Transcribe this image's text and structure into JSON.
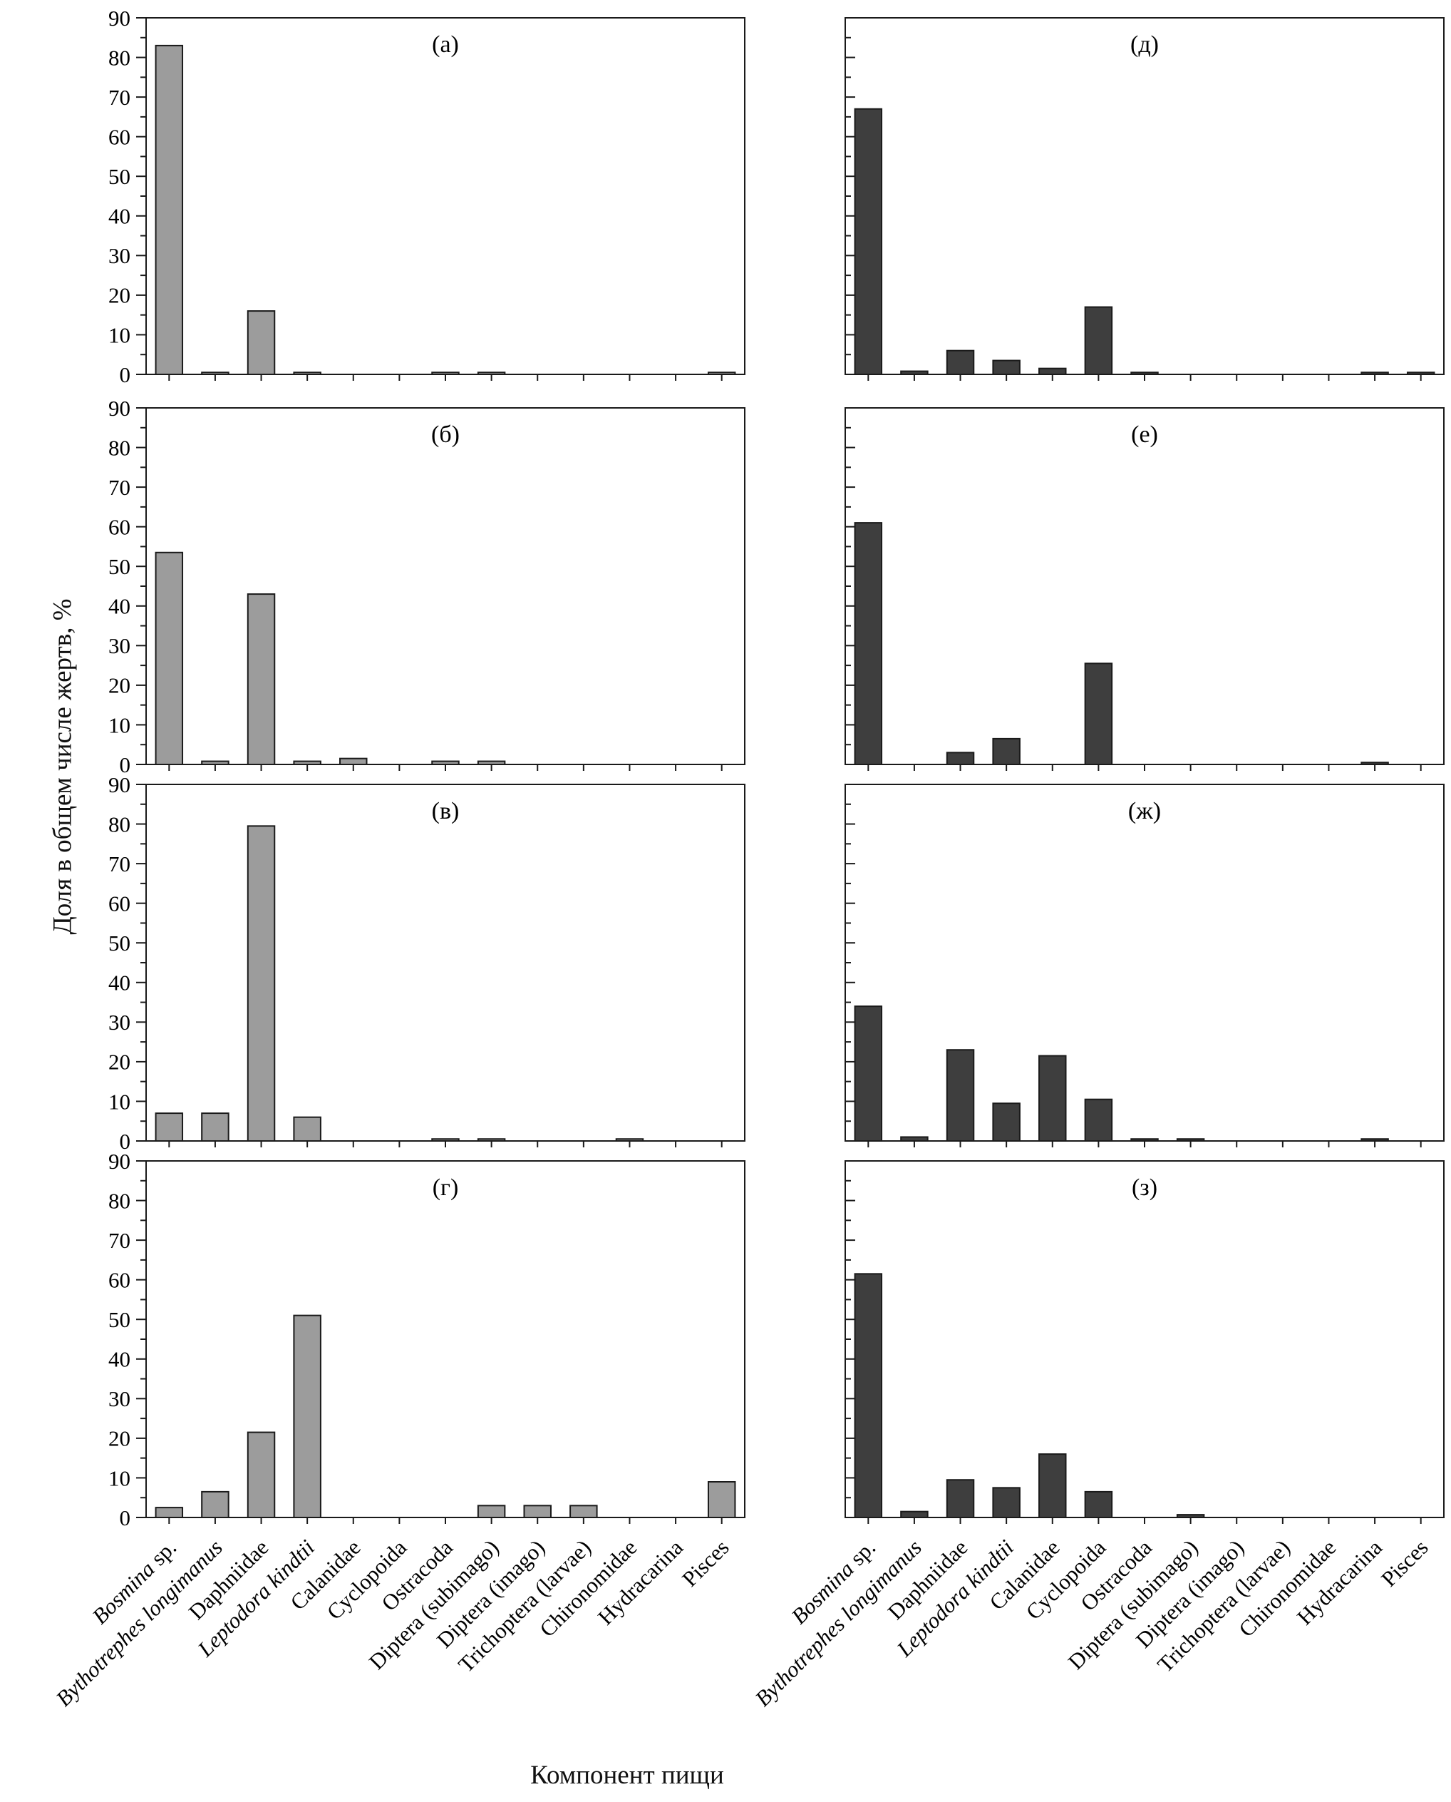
{
  "figure": {
    "ylabel": "Доля в общем числе жертв, %",
    "xlabel": "Компонент пищи"
  },
  "chart_data": {
    "type": "bar",
    "grid": false,
    "ylim": [
      0,
      90
    ],
    "ytick_step": 10,
    "ytick_minor_step": 5,
    "ytick_labels": [
      "0",
      "10",
      "20",
      "30",
      "40",
      "50",
      "60",
      "70",
      "80",
      "90"
    ],
    "colors": {
      "left_bar": "#9c9c9c",
      "right_bar": "#3e3e3e",
      "axis": "#1a1a1a"
    },
    "categories": [
      {
        "italic": "Bosmina",
        "roman": " sp."
      },
      {
        "italic": "Bythotrephes longimanus",
        "roman": ""
      },
      {
        "italic": "",
        "roman": "Daphniidae"
      },
      {
        "italic": "Leptodora kindtii",
        "roman": ""
      },
      {
        "italic": "",
        "roman": "Calanidae"
      },
      {
        "italic": "",
        "roman": "Cyclopoida"
      },
      {
        "italic": "",
        "roman": "Ostracoda"
      },
      {
        "italic": "",
        "roman": "Diptera (subimago)"
      },
      {
        "italic": "",
        "roman": "Diptera (imago)"
      },
      {
        "italic": "",
        "roman": "Trichoptera (larvae)"
      },
      {
        "italic": "",
        "roman": "Chironomidae"
      },
      {
        "italic": "",
        "roman": "Hydracarina"
      },
      {
        "italic": "",
        "roman": "Pisces"
      }
    ],
    "panels": [
      {
        "id": "a",
        "label": "(а)",
        "column": "left",
        "row": 0,
        "values": [
          83,
          0.5,
          16,
          0.5,
          0,
          0,
          0.5,
          0.5,
          0,
          0,
          0,
          0,
          0.5
        ]
      },
      {
        "id": "b",
        "label": "(б)",
        "column": "left",
        "row": 1,
        "values": [
          53.5,
          0.8,
          43,
          0.8,
          1.5,
          0,
          0.8,
          0.8,
          0,
          0,
          0,
          0,
          0
        ]
      },
      {
        "id": "v",
        "label": "(в)",
        "column": "left",
        "row": 2,
        "values": [
          7,
          7,
          79.5,
          6,
          0,
          0,
          0.5,
          0.5,
          0,
          0,
          0.5,
          0,
          0
        ]
      },
      {
        "id": "g",
        "label": "(г)",
        "column": "left",
        "row": 3,
        "values": [
          2.5,
          6.5,
          21.5,
          51,
          0,
          0,
          0,
          3,
          3,
          3,
          0,
          0,
          9
        ]
      },
      {
        "id": "d",
        "label": "(д)",
        "column": "right",
        "row": 0,
        "values": [
          67,
          0.8,
          6,
          3.5,
          1.5,
          17,
          0.5,
          0,
          0,
          0,
          0,
          0.5,
          0.5
        ]
      },
      {
        "id": "e",
        "label": "(е)",
        "column": "right",
        "row": 1,
        "values": [
          61,
          0,
          3,
          6.5,
          0,
          25.5,
          0,
          0,
          0,
          0,
          0,
          0.5,
          0
        ]
      },
      {
        "id": "zh",
        "label": "(ж)",
        "column": "right",
        "row": 2,
        "values": [
          34,
          1,
          23,
          9.5,
          21.5,
          10.5,
          0.5,
          0.5,
          0,
          0,
          0,
          0.5,
          0
        ]
      },
      {
        "id": "z",
        "label": "(з)",
        "column": "right",
        "row": 3,
        "values": [
          61.5,
          1.5,
          9.5,
          7.5,
          16,
          6.5,
          0,
          0.7,
          0,
          0,
          0,
          0,
          0
        ]
      }
    ]
  }
}
